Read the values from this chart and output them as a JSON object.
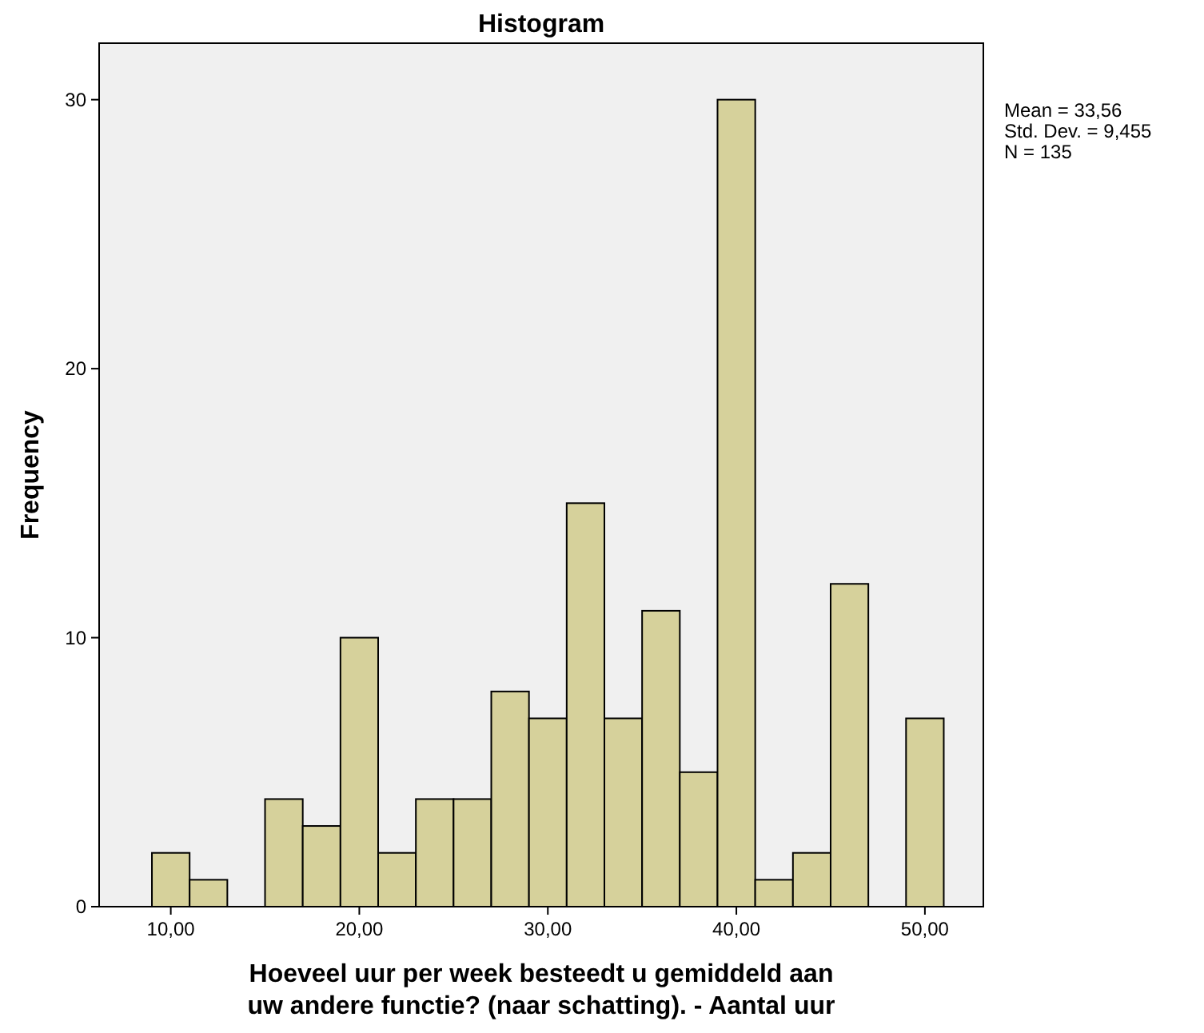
{
  "chart_data": {
    "type": "histogram",
    "title": "Histogram",
    "xlabel": "Hoeveel uur per week besteedt u gemiddeld aan\nuw andere functie? (naar schatting). - Aantal uur",
    "ylabel": "Frequency",
    "bins": [
      9,
      11,
      13,
      15,
      17,
      19,
      21,
      23,
      25,
      27,
      29,
      31,
      33,
      35,
      37,
      39,
      41,
      43,
      45,
      47,
      49,
      51
    ],
    "values": [
      2,
      1,
      0,
      4,
      3,
      10,
      2,
      4,
      4,
      8,
      7,
      15,
      7,
      11,
      5,
      30,
      1,
      2,
      12,
      0,
      7
    ],
    "color": "#d6d19b",
    "xlim": [
      6.2,
      53.1
    ],
    "xticks": [
      {
        "value": 10,
        "label": "10,00"
      },
      {
        "value": 20,
        "label": "20,00"
      },
      {
        "value": 30,
        "label": "30,00"
      },
      {
        "value": 40,
        "label": "40,00"
      },
      {
        "value": 50,
        "label": "50,00"
      }
    ],
    "ylim": [
      0,
      32.1
    ],
    "yticks": [
      0,
      10,
      20,
      30
    ],
    "grid": false,
    "annotations": [
      "Mean = 33,56",
      "Std. Dev. = 9,455",
      "N = 135"
    ]
  }
}
